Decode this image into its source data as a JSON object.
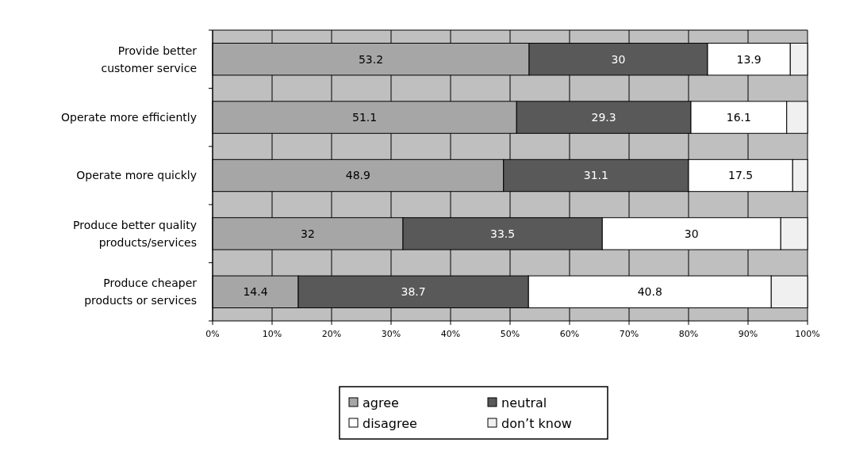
{
  "chart_data": {
    "type": "bar",
    "orientation": "horizontal",
    "stacked": true,
    "categories": [
      "Provide better customer service",
      "Operate more efficiently",
      "Operate more quickly",
      "Produce better quality products/services",
      "Produce cheaper products or services"
    ],
    "series": [
      {
        "name": "agree",
        "color": "#a6a6a6",
        "values": [
          53.2,
          51.1,
          48.9,
          32,
          14.4
        ],
        "value_labels": [
          "53.2",
          "51.1",
          "48.9",
          "32",
          "14.4"
        ]
      },
      {
        "name": "neutral",
        "color": "#595959",
        "values": [
          30,
          29.3,
          31.1,
          33.5,
          38.7
        ],
        "value_labels": [
          "30",
          "29.3",
          "31.1",
          "33.5",
          "38.7"
        ]
      },
      {
        "name": "disagree",
        "color": "#ffffff",
        "values": [
          13.9,
          16.1,
          17.5,
          30,
          40.8
        ],
        "value_labels": [
          "13.9",
          "16.1",
          "17.5",
          "30",
          "40.8"
        ]
      },
      {
        "name": "don’t know",
        "color": "#f0f0f0",
        "values": [
          2.9,
          3.5,
          2.5,
          4.5,
          6.1
        ]
      }
    ],
    "xlim": [
      0,
      100
    ],
    "xticks": [
      {
        "value": 0,
        "label": "0%"
      },
      {
        "value": 10,
        "label": "10%"
      },
      {
        "value": 20,
        "label": "20%"
      },
      {
        "value": 30,
        "label": "30%"
      },
      {
        "value": 40,
        "label": "40%"
      },
      {
        "value": 50,
        "label": "50%"
      },
      {
        "value": 60,
        "label": "60%"
      },
      {
        "value": 70,
        "label": "70%"
      },
      {
        "value": 80,
        "label": "80%"
      },
      {
        "value": 90,
        "label": "90%"
      },
      {
        "value": 100,
        "label": "100%"
      }
    ],
    "grid": "x",
    "legend": "bottom"
  }
}
